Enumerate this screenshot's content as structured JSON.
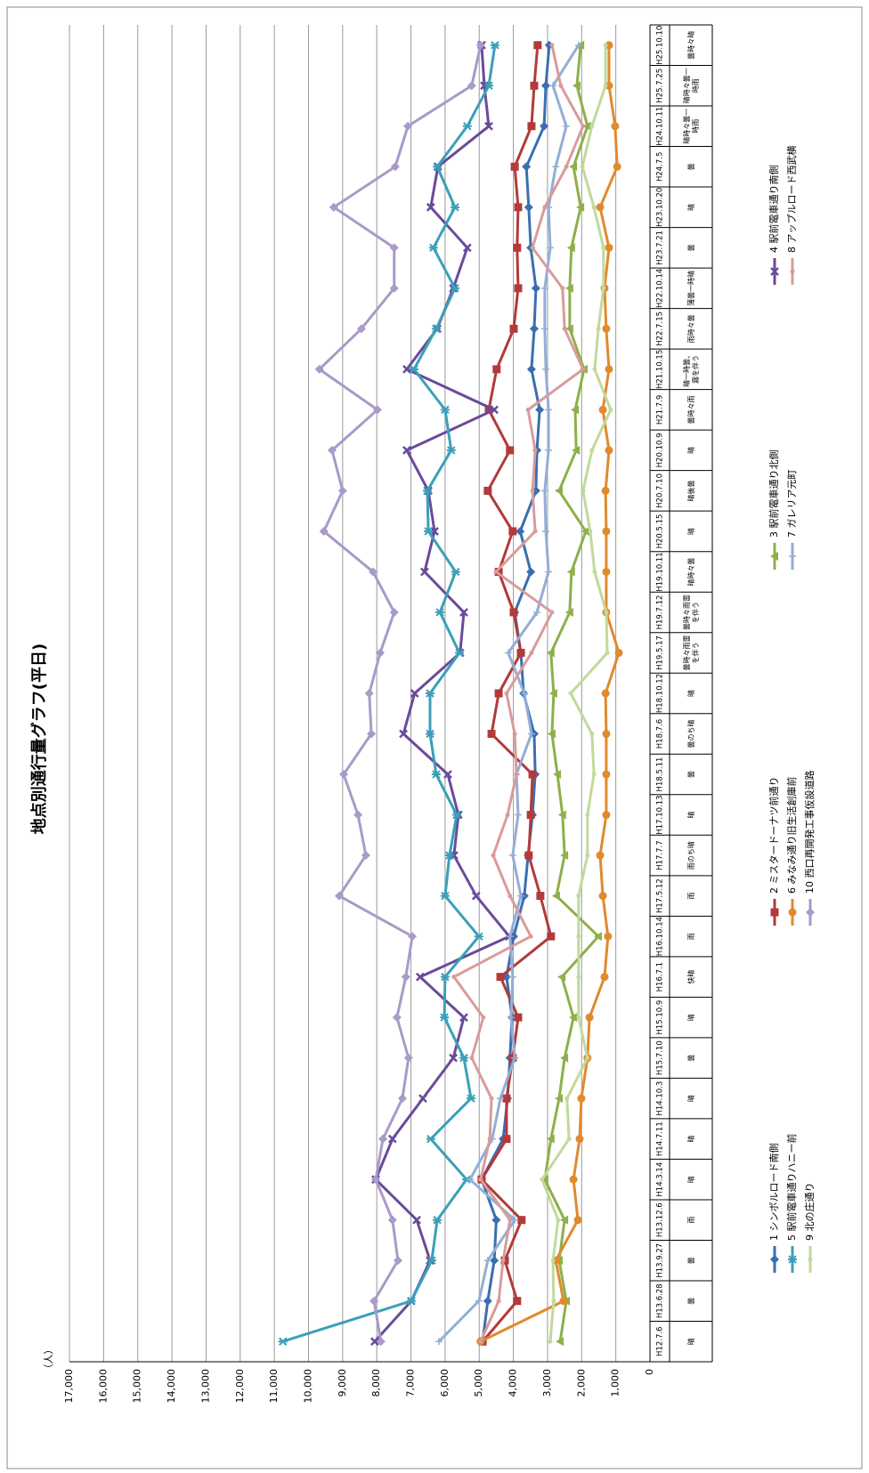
{
  "chart_data": {
    "type": "line",
    "title": "地点別通行量グラフ(平日)",
    "y_label": "（人）",
    "categories": [
      "H12.7.6",
      "H13.6.28",
      "H13.9.27",
      "H13.12.6",
      "H14.3.14",
      "H14.7.11",
      "H14.10.3",
      "H15.7.10",
      "H15.10.9",
      "H16.7.1",
      "H16.10.14",
      "H17.5.12",
      "H17.7.7",
      "H17.10.13",
      "H18.5.11",
      "H18.7.6",
      "H18.10.12",
      "H19.5.17",
      "H19.7.12",
      "H19.10.11",
      "H20.5.15",
      "H20.7.10",
      "H20.10.9",
      "H21.7.9",
      "H21.10.15",
      "H22.7.15",
      "H22.10.14",
      "H23.7.21",
      "H23.10.20",
      "H24.7.5",
      "H24.10.11",
      "H25.7.25",
      "H25.10.10"
    ],
    "weather": [
      "晴",
      "曇",
      "曇",
      "雨",
      "晴",
      "晴",
      "晴",
      "曇",
      "晴",
      "快晴",
      "雨",
      "雨",
      "雨のち晴",
      "晴",
      "曇",
      "曇のち晴",
      "晴",
      "曇時々雨雷を伴う",
      "曇時々雨雷を伴う",
      "晴時々曇",
      "晴",
      "晴後曇",
      "晴",
      "曇時々雨",
      "晴一時曇、霧を伴う",
      "雨時々曇",
      "薄曇一時晴",
      "曇",
      "晴",
      "曇",
      "晴時々曇一時雨",
      "晴時々曇一時雨",
      "曇時々晴"
    ],
    "ylim": [
      0,
      17000
    ],
    "yticks": [
      0,
      {
        "value": 1000,
        "label": "1,000"
      },
      {
        "value": 2000,
        "label": "2,000"
      },
      {
        "value": 3000,
        "label": "3,000"
      },
      {
        "value": 4000,
        "label": "4,000"
      },
      {
        "value": 5000,
        "label": "5,000"
      },
      {
        "value": 6000,
        "label": "6,000"
      },
      {
        "value": 7000,
        "label": "7,000"
      },
      {
        "value": 8000,
        "label": "8,000"
      },
      {
        "value": 9000,
        "label": "9,000"
      },
      {
        "value": 10000,
        "label": "10,000"
      },
      {
        "value": 11000,
        "label": "11,000"
      },
      {
        "value": 12000,
        "label": "12,000"
      },
      {
        "value": 13000,
        "label": "13,000"
      },
      {
        "value": 14000,
        "label": "14,000"
      },
      {
        "value": 15000,
        "label": "15,000"
      },
      {
        "value": 16000,
        "label": "16,000"
      },
      {
        "value": 17000,
        "label": "17,000"
      }
    ],
    "grid": true,
    "legend": "bottom",
    "series": [
      {
        "name": "1 シンボルロード南側",
        "color": "#3a6fb0",
        "marker": "diamond",
        "values": [
          4900,
          4750,
          4560,
          4500,
          4930,
          4300,
          4170,
          4100,
          4040,
          4200,
          3990,
          3680,
          3570,
          3440,
          3360,
          3390,
          3700,
          3780,
          3960,
          3490,
          3800,
          3340,
          3310,
          3230,
          3470,
          3390,
          3340,
          3490,
          3550,
          3620,
          3100,
          3050,
          2950
        ]
      },
      {
        "name": "2 ミスタードーナツ前通り",
        "color": "#b33a3a",
        "marker": "square",
        "values": [
          4900,
          3890,
          4250,
          3760,
          4930,
          4200,
          4200,
          4020,
          3860,
          4380,
          2900,
          3210,
          3550,
          3490,
          3440,
          4640,
          4430,
          3780,
          3990,
          4430,
          4020,
          4750,
          4100,
          4720,
          4490,
          3990,
          3860,
          3890,
          3860,
          3960,
          3470,
          3390,
          3290
        ]
      },
      {
        "name": "3 駅前電車通り北側",
        "color": "#8db04a",
        "marker": "triangle",
        "values": [
          2630,
          2450,
          2660,
          2500,
          3080,
          2900,
          2660,
          2500,
          2240,
          2580,
          1510,
          2740,
          2500,
          2560,
          2710,
          2870,
          2820,
          2900,
          2350,
          2300,
          1880,
          2660,
          2160,
          2190,
          1930,
          2350,
          2350,
          2300,
          2030,
          2240,
          1830,
          2140,
          2030
        ]
      },
      {
        "name": "4 駅前電車通り南側",
        "color": "#6b4a9a",
        "marker": "x",
        "values": [
          8060,
          6990,
          6440,
          6830,
          8030,
          7540,
          6650,
          5760,
          5450,
          6730,
          4120,
          5090,
          5740,
          5610,
          5920,
          7220,
          6890,
          5560,
          5450,
          6600,
          6310,
          6490,
          7120,
          4560,
          7120,
          6230,
          5760,
          5350,
          6420,
          6210,
          4720,
          4850,
          4930
        ]
      },
      {
        "name": "5 駅前電車通りハニー前",
        "color": "#3aa0b8",
        "marker": "star",
        "values": [
          10750,
          6990,
          6390,
          6230,
          5370,
          6420,
          5240,
          5450,
          6020,
          6000,
          5010,
          6000,
          5870,
          5660,
          6260,
          6440,
          6440,
          5580,
          6150,
          5690,
          6490,
          6520,
          5820,
          6000,
          6910,
          6260,
          5710,
          6340,
          5710,
          6230,
          5350,
          4720,
          4540
        ]
      },
      {
        "name": "6 みなみ通り旧生活創庫前",
        "color": "#e08a2e",
        "marker": "circle",
        "values": [
          4960,
          2530,
          2760,
          2110,
          2240,
          2060,
          2010,
          1830,
          1770,
          1330,
          1230,
          1380,
          1460,
          1280,
          1280,
          1280,
          1300,
          910,
          1280,
          1280,
          1280,
          1300,
          1200,
          1380,
          1200,
          1280,
          1330,
          1200,
          1460,
          960,
          1020,
          1200,
          1200
        ]
      },
      {
        "name": "7 ガレリア元町",
        "color": "#93aed6",
        "marker": "plus",
        "values": [
          6180,
          5010,
          4750,
          3960,
          5270,
          4620,
          4380,
          3960,
          4070,
          4020,
          4100,
          3780,
          4020,
          3860,
          3910,
          3470,
          3680,
          4150,
          3310,
          2970,
          3050,
          3080,
          2970,
          2970,
          3050,
          3080,
          3080,
          2920,
          2970,
          2760,
          2450,
          2840,
          2090
        ]
      },
      {
        "name": "8 アップルロード西武横",
        "color": "#d99b9b",
        "marker": "none",
        "values": [
          4960,
          4430,
          4300,
          4100,
          4960,
          4690,
          4640,
          5220,
          4880,
          5740,
          3490,
          4100,
          4590,
          4170,
          3910,
          3960,
          4200,
          3470,
          2870,
          4510,
          3360,
          3440,
          3360,
          3570,
          1960,
          2500,
          2560,
          3440,
          3080,
          2450,
          1960,
          2610,
          2870
        ]
      },
      {
        "name": "9 北の庄通り",
        "color": "#c2d99a",
        "marker": "none",
        "values": [
          2920,
          2820,
          2840,
          2690,
          3160,
          2370,
          2430,
          1830,
          2090,
          2090,
          2090,
          2090,
          1830,
          1830,
          1640,
          1700,
          2320,
          1250,
          1280,
          1620,
          1750,
          1960,
          1700,
          1150,
          1620,
          1510,
          1360,
          1360,
          1640,
          1980,
          1700,
          1300,
          1300
        ]
      },
      {
        "name": "10 西口再開発工事仮設道路",
        "color": "#a99ac8",
        "marker": "diamond",
        "values": [
          7880,
          8080,
          7380,
          7540,
          8030,
          7820,
          7250,
          7070,
          7410,
          7150,
          6960,
          9100,
          8320,
          8550,
          8970,
          8160,
          8220,
          7900,
          7490,
          8110,
          9550,
          9000,
          9310,
          7980,
          9680,
          8450,
          7490,
          7490,
          9260,
          7460,
          7090,
          5220,
          4960
        ]
      }
    ]
  }
}
